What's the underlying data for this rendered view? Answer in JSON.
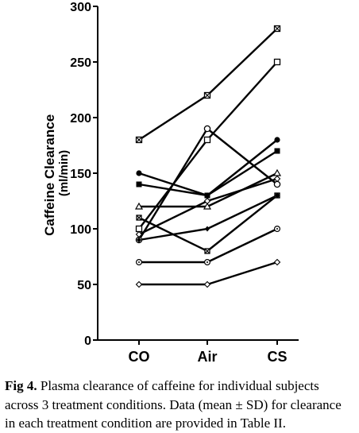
{
  "chart_data": {
    "type": "line",
    "categories": [
      "CO",
      "Air",
      "CS"
    ],
    "ylabel_line1": "Caffeine Clearance",
    "ylabel_line2": "(ml/min)",
    "ylim": [
      0,
      300
    ],
    "yticks": [
      0,
      50,
      100,
      150,
      200,
      250,
      300
    ],
    "grid": false,
    "series": [
      {
        "marker": "square-x",
        "values": [
          180,
          220,
          280
        ]
      },
      {
        "marker": "open-square",
        "values": [
          100,
          180,
          250
        ]
      },
      {
        "marker": "open-circle-large",
        "values": [
          90,
          190,
          140
        ]
      },
      {
        "marker": "filled-circle",
        "values": [
          150,
          130,
          180
        ]
      },
      {
        "marker": "filled-square",
        "values": [
          140,
          130,
          170
        ]
      },
      {
        "marker": "open-triangle",
        "values": [
          120,
          120,
          150
        ]
      },
      {
        "marker": "square-x-small",
        "values": [
          110,
          80,
          130
        ]
      },
      {
        "marker": "filled-diamond",
        "values": [
          90,
          100,
          130
        ]
      },
      {
        "marker": "circle-dot",
        "values": [
          70,
          70,
          100
        ]
      },
      {
        "marker": "open-diamond",
        "values": [
          50,
          50,
          70
        ]
      },
      {
        "marker": "open-diamond-thin",
        "values": [
          95,
          125,
          145
        ]
      }
    ]
  },
  "caption": {
    "label": "Fig 4.",
    "text": "Plasma clearance of caffeine for individual subjects across 3 treatment conditions. Data (mean ± SD) for clearance in each treatment condition are provided in Table II."
  }
}
